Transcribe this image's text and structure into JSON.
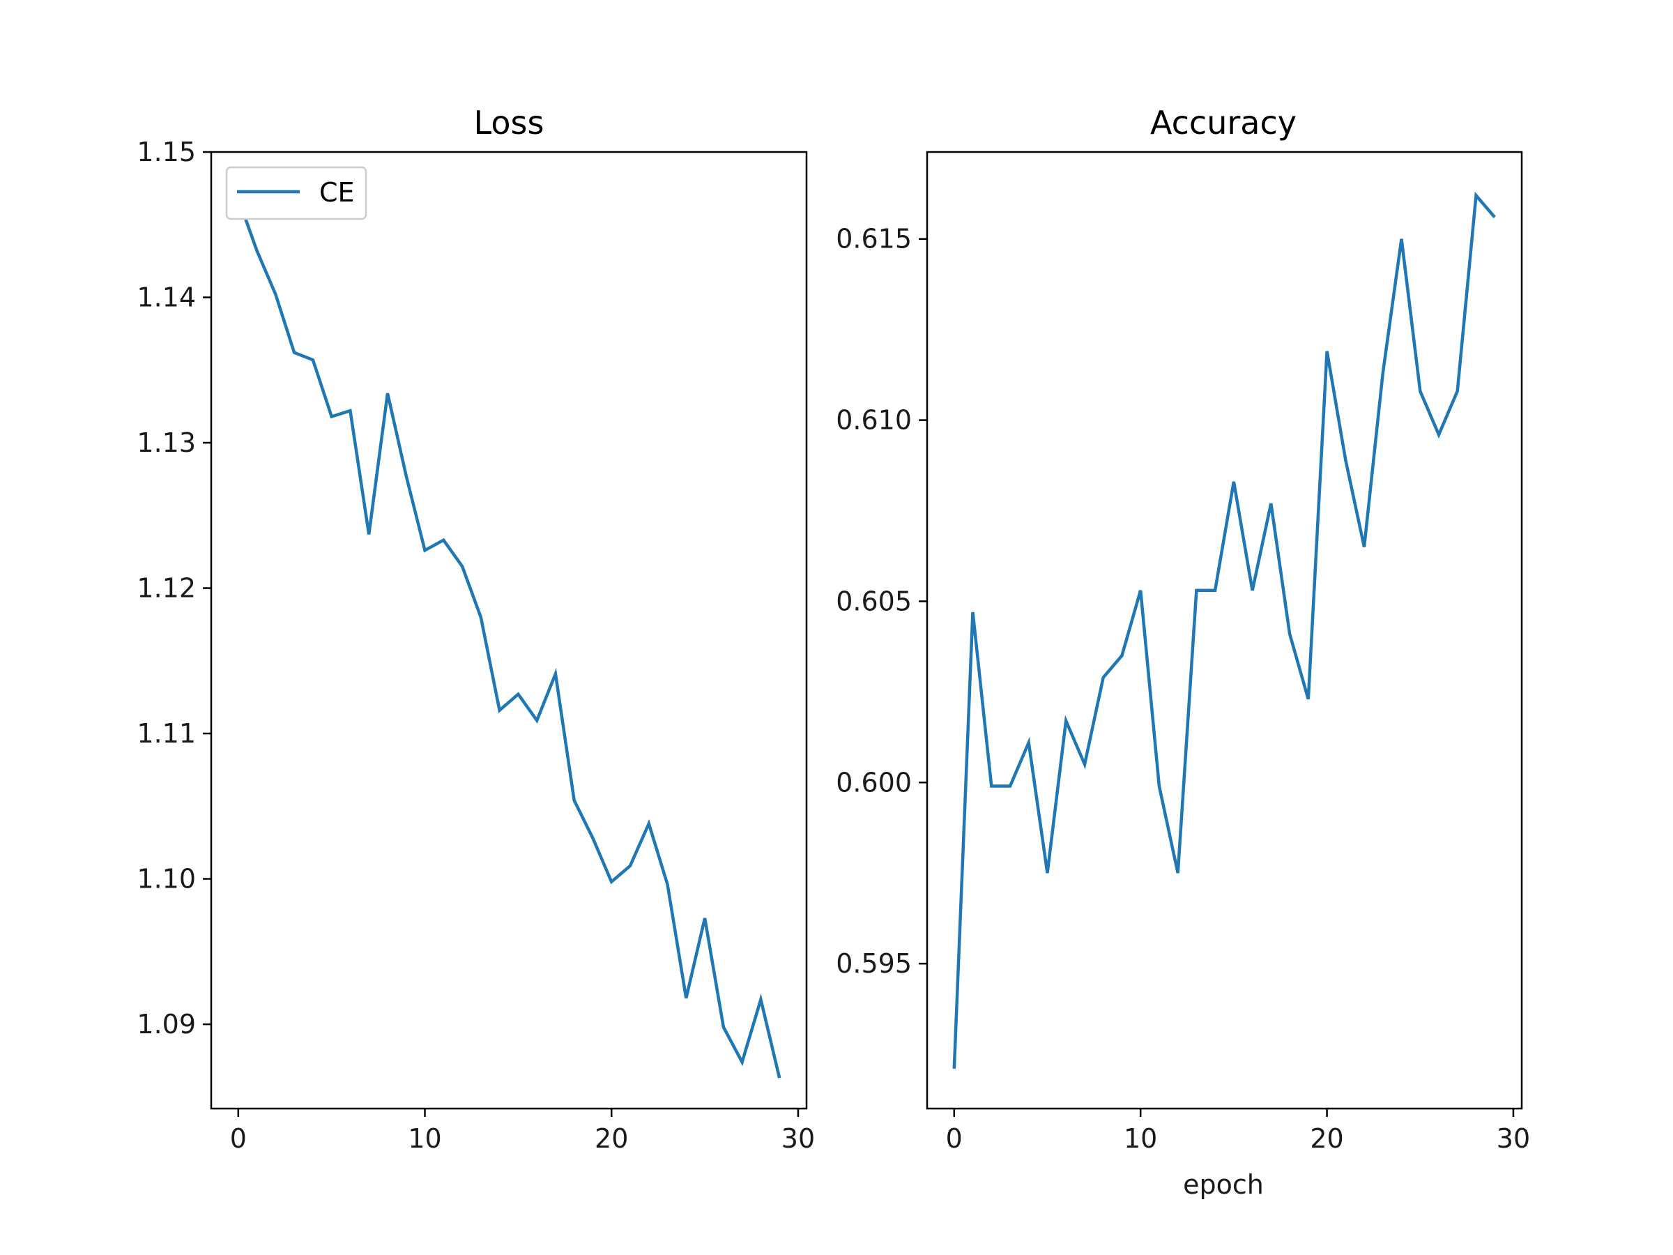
{
  "chart_data": [
    {
      "type": "line",
      "title": "Loss",
      "xlabel": "",
      "ylabel": "",
      "xlim": [
        -1.45,
        30.45
      ],
      "ylim": [
        1.0842,
        1.15
      ],
      "xticks": [
        0,
        10,
        20,
        30
      ],
      "xtick_labels": [
        "0",
        "10",
        "20",
        "30"
      ],
      "yticks": [
        1.09,
        1.1,
        1.11,
        1.12,
        1.13,
        1.14,
        1.15
      ],
      "ytick_labels": [
        "1.09",
        "1.10",
        "1.11",
        "1.12",
        "1.13",
        "1.14",
        "1.15"
      ],
      "grid": false,
      "legend": {
        "placement": "top-left",
        "entries": [
          "CE"
        ]
      },
      "series": [
        {
          "name": "CE",
          "color": "#1f77b4",
          "x": [
            0,
            1,
            2,
            3,
            4,
            5,
            6,
            7,
            8,
            9,
            10,
            11,
            12,
            13,
            14,
            15,
            16,
            17,
            18,
            19,
            20,
            21,
            22,
            23,
            24,
            25,
            26,
            27,
            28,
            29
          ],
          "values": [
            1.1468,
            1.1432,
            1.1402,
            1.1362,
            1.1357,
            1.1318,
            1.1322,
            1.1237,
            1.1334,
            1.1277,
            1.1226,
            1.1233,
            1.1215,
            1.118,
            1.1116,
            1.1127,
            1.1109,
            1.1141,
            1.1054,
            1.1028,
            1.0998,
            1.1009,
            1.1038,
            1.0996,
            1.0918,
            1.0973,
            1.0898,
            1.0874,
            1.0917,
            1.0863
          ]
        }
      ]
    },
    {
      "type": "line",
      "title": "Accuracy",
      "xlabel": "epoch",
      "ylabel": "",
      "xlim": [
        -1.45,
        30.45
      ],
      "ylim": [
        0.591,
        0.6174
      ],
      "xticks": [
        0,
        10,
        20,
        30
      ],
      "xtick_labels": [
        "0",
        "10",
        "20",
        "30"
      ],
      "yticks": [
        0.595,
        0.6,
        0.605,
        0.61,
        0.615
      ],
      "ytick_labels": [
        "0.595",
        "0.600",
        "0.605",
        "0.610",
        "0.615"
      ],
      "grid": false,
      "series": [
        {
          "color": "#1f77b4",
          "x": [
            0,
            1,
            2,
            3,
            4,
            5,
            6,
            7,
            8,
            9,
            10,
            11,
            12,
            13,
            14,
            15,
            16,
            17,
            18,
            19,
            20,
            21,
            22,
            23,
            24,
            25,
            26,
            27,
            28,
            29
          ],
          "values": [
            0.5921,
            0.6047,
            0.5999,
            0.5999,
            0.6011,
            0.5975,
            0.6017,
            0.6005,
            0.6029,
            0.6035,
            0.6053,
            0.5999,
            0.5975,
            0.6053,
            0.6053,
            0.6083,
            0.6053,
            0.6077,
            0.6041,
            0.6023,
            0.6119,
            0.6089,
            0.6065,
            0.6113,
            0.615,
            0.6108,
            0.6096,
            0.6108,
            0.6162,
            0.6156
          ]
        }
      ]
    }
  ]
}
